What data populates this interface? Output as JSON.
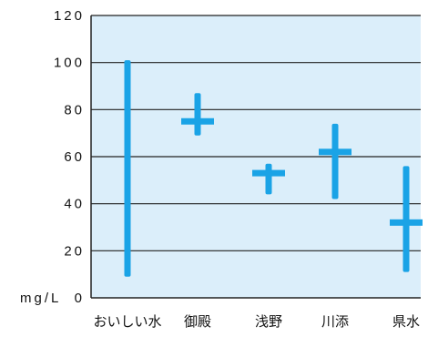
{
  "chart_data": {
    "type": "range",
    "title": "",
    "xlabel": "",
    "ylabel": "mg/L",
    "ylim": [
      0,
      120
    ],
    "yticks": [
      0,
      20,
      40,
      60,
      80,
      100,
      120
    ],
    "grid": true,
    "legend": "none",
    "categories": [
      "おいしい水",
      "御殿",
      "浅野",
      "川添",
      "県水"
    ],
    "series": [
      {
        "min": 9,
        "max": 101,
        "mean": null
      },
      {
        "min": 69,
        "max": 87,
        "mean": 75
      },
      {
        "min": 44,
        "max": 57,
        "mean": 53
      },
      {
        "min": 42,
        "max": 74,
        "mean": 62
      },
      {
        "min": 11,
        "max": 56,
        "mean": 32
      }
    ],
    "colors": {
      "plot_background": "#dbeefa",
      "mark": "#1aa3e6",
      "grid": "#222222",
      "axis": "#222222"
    }
  }
}
